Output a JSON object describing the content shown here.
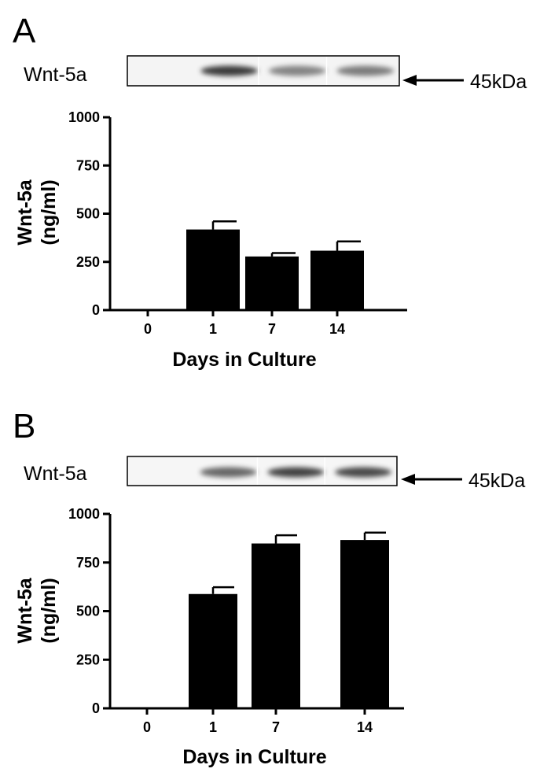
{
  "panels": [
    {
      "label": "A",
      "blot": {
        "label": "Wnt-5a",
        "marker": "45kDa",
        "band_intensity": [
          0.0,
          0.85,
          0.35,
          0.4
        ]
      },
      "chart_data": {
        "type": "bar",
        "categories": [
          "0",
          "1",
          "7",
          "14"
        ],
        "values": [
          0,
          418,
          278,
          308
        ],
        "errors": [
          0,
          42,
          18,
          48
        ],
        "xlabel": "Days in Culture",
        "ylabel": "Wnt-5a\n(ng/ml)",
        "ylim": [
          0,
          1000
        ],
        "yticks": [
          "0",
          "250",
          "500",
          "750",
          "1000"
        ],
        "grid": false
      }
    },
    {
      "label": "B",
      "blot": {
        "label": "Wnt-5a",
        "marker": "45kDa",
        "band_intensity": [
          0.0,
          0.55,
          0.8,
          0.75
        ]
      },
      "chart_data": {
        "type": "bar",
        "categories": [
          "0",
          "1",
          "7",
          "14"
        ],
        "values": [
          0,
          588,
          848,
          866
        ],
        "errors": [
          0,
          35,
          42,
          38
        ],
        "xlabel": "Days in Culture",
        "ylabel": "Wnt-5a\n(ng/ml)",
        "ylim": [
          0,
          1000
        ],
        "yticks": [
          "0",
          "250",
          "500",
          "750",
          "1000"
        ],
        "grid": false
      }
    }
  ]
}
